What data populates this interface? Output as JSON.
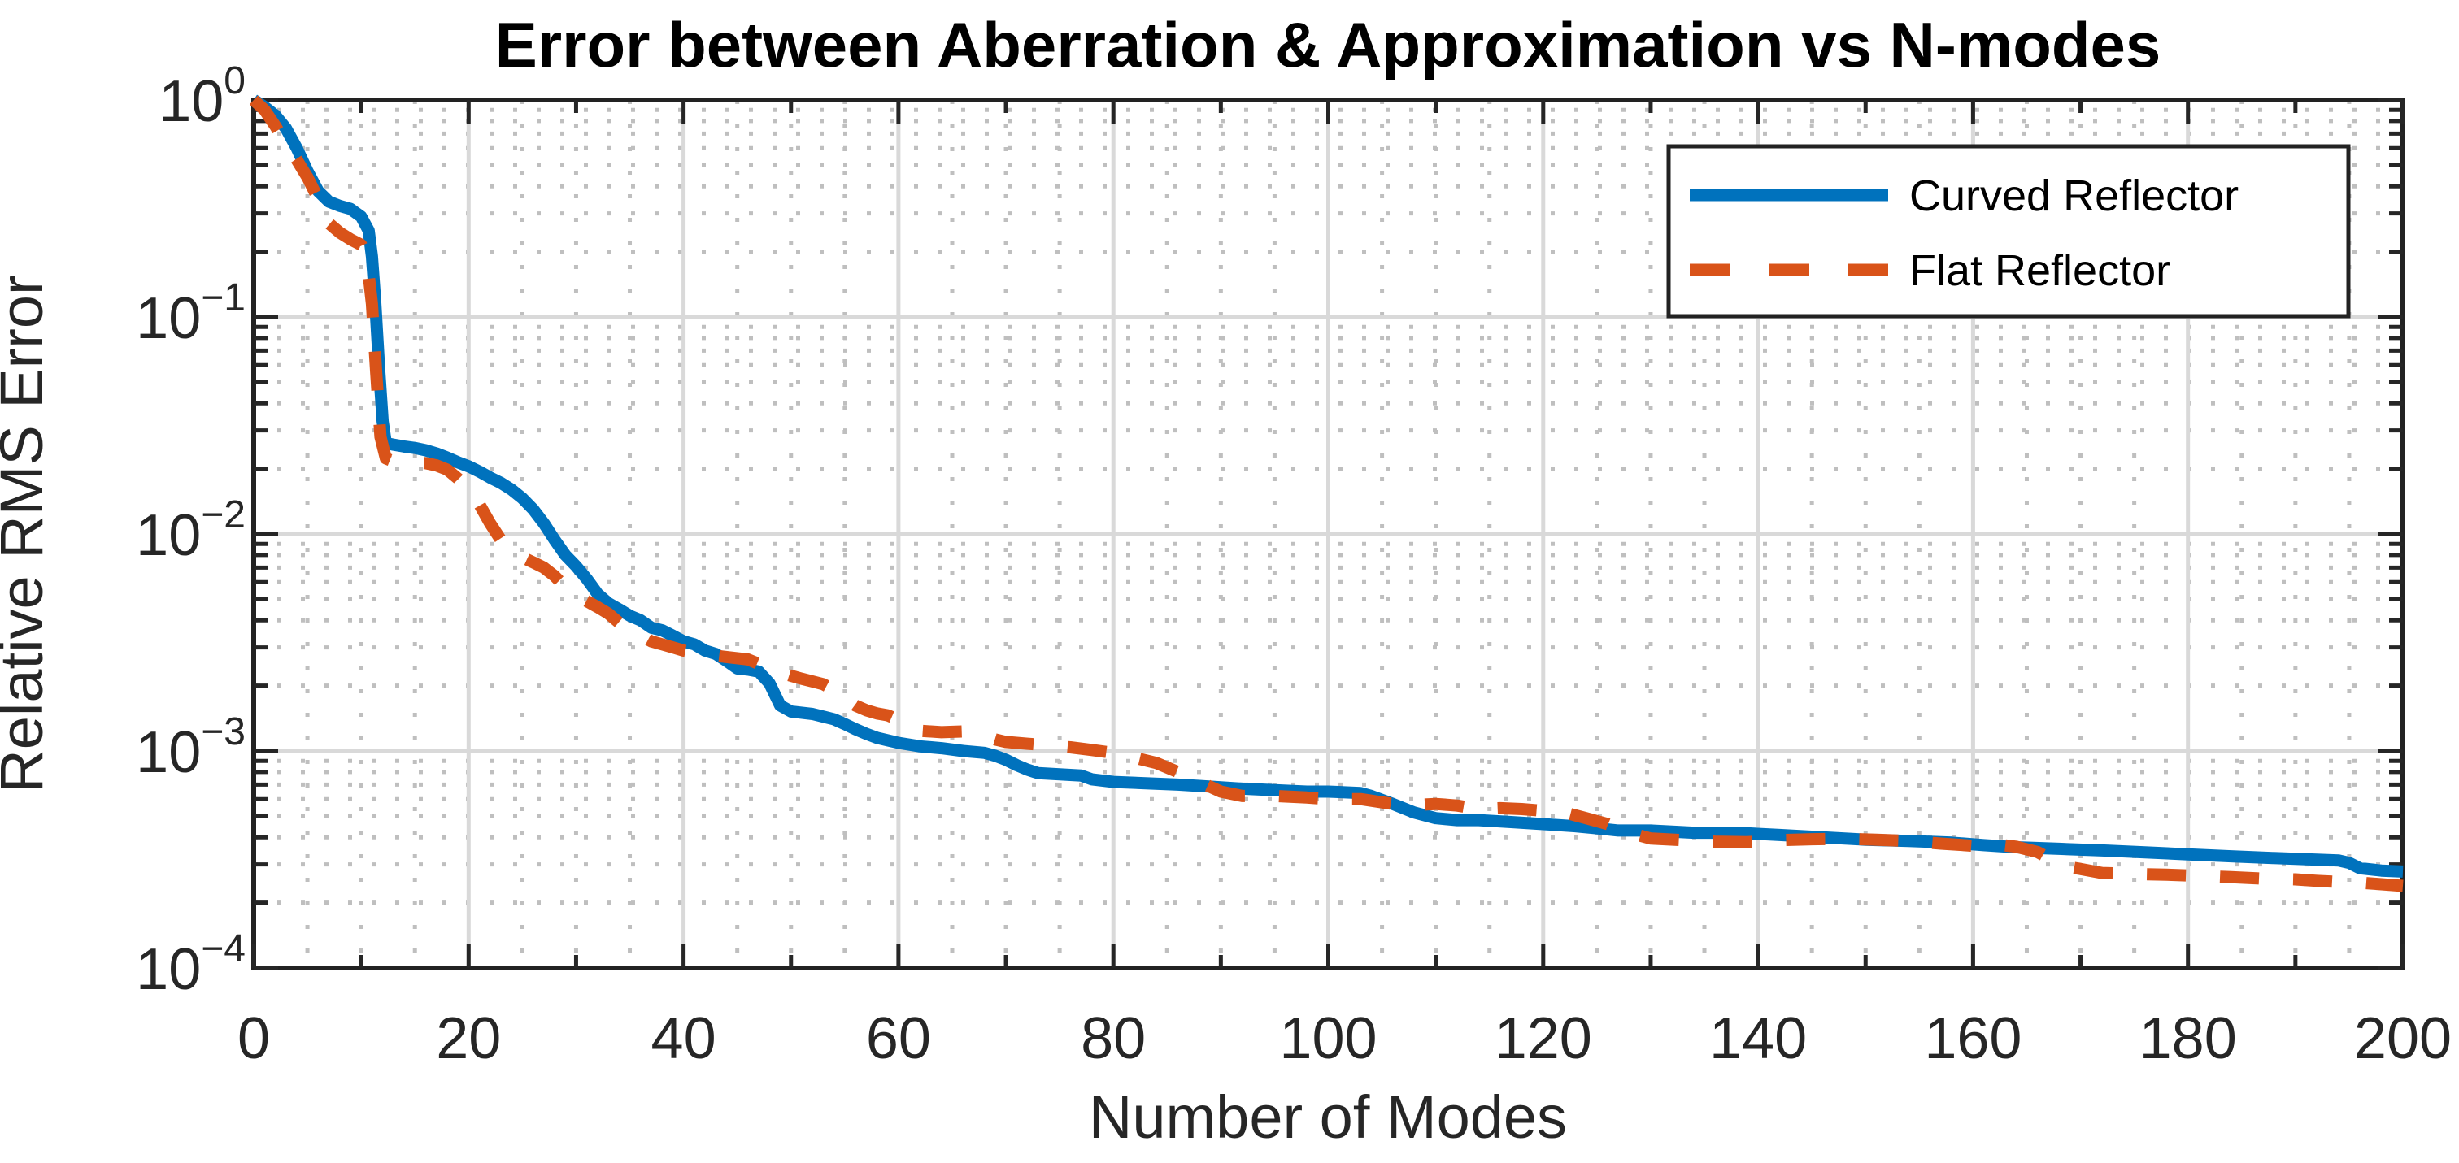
{
  "chart_data": {
    "type": "line",
    "title": "Error between Aberration & Approximation vs N-modes",
    "xlabel": "Number of Modes",
    "ylabel": "Relative RMS Error",
    "xlim": [
      0,
      200
    ],
    "ylim": [
      0.0001,
      1
    ],
    "y_scale": "log10",
    "x_ticks": [
      0,
      20,
      40,
      60,
      80,
      100,
      120,
      140,
      160,
      180,
      200
    ],
    "y_tick_exponents": [
      0,
      -1,
      -2,
      -3,
      -4
    ],
    "grid": {
      "major": "solid",
      "minor": "dotted",
      "x_minor_step": 5,
      "y_minor": "log decades 2-9"
    },
    "legend_position": "northeast",
    "axis_color": "#262626",
    "background": "#ffffff",
    "series": [
      {
        "name": "Curved Reflector",
        "color": "#0072BD",
        "style": "solid",
        "points": [
          [
            0,
            1.0
          ],
          [
            1,
            0.93
          ],
          [
            2,
            0.85
          ],
          [
            3,
            0.74
          ],
          [
            4,
            0.6
          ],
          [
            5,
            0.47
          ],
          [
            6,
            0.38
          ],
          [
            7,
            0.34
          ],
          [
            8,
            0.325
          ],
          [
            9,
            0.315
          ],
          [
            10,
            0.29
          ],
          [
            10.7,
            0.25
          ],
          [
            11,
            0.19
          ],
          [
            11.3,
            0.12
          ],
          [
            11.7,
            0.055
          ],
          [
            12,
            0.033
          ],
          [
            12.3,
            0.0262
          ],
          [
            13,
            0.0258
          ],
          [
            14,
            0.0253
          ],
          [
            15,
            0.0249
          ],
          [
            16,
            0.0243
          ],
          [
            17,
            0.0235
          ],
          [
            18,
            0.0225
          ],
          [
            19,
            0.0214
          ],
          [
            20,
            0.0205
          ],
          [
            21,
            0.0194
          ],
          [
            22,
            0.0182
          ],
          [
            23,
            0.0172
          ],
          [
            24,
            0.016
          ],
          [
            25,
            0.0146
          ],
          [
            26,
            0.013
          ],
          [
            27,
            0.0112
          ],
          [
            28,
            0.0094
          ],
          [
            29,
            0.008
          ],
          [
            30,
            0.0071
          ],
          [
            31,
            0.0062
          ],
          [
            32,
            0.0053
          ],
          [
            33,
            0.0048
          ],
          [
            34,
            0.0045
          ],
          [
            35,
            0.0042
          ],
          [
            36,
            0.004
          ],
          [
            37,
            0.0037
          ],
          [
            38,
            0.0036
          ],
          [
            39,
            0.0034
          ],
          [
            40,
            0.0032
          ],
          [
            41,
            0.0031
          ],
          [
            42,
            0.0029
          ],
          [
            43,
            0.0028
          ],
          [
            44,
            0.0026
          ],
          [
            45,
            0.0024
          ],
          [
            46,
            0.00237
          ],
          [
            47,
            0.00232
          ],
          [
            48,
            0.00205
          ],
          [
            49,
            0.00162
          ],
          [
            50,
            0.00152
          ],
          [
            52,
            0.00148
          ],
          [
            54,
            0.0014
          ],
          [
            55,
            0.00133
          ],
          [
            56,
            0.00126
          ],
          [
            57,
            0.0012
          ],
          [
            58,
            0.00115
          ],
          [
            59,
            0.00112
          ],
          [
            60,
            0.00109
          ],
          [
            62,
            0.00105
          ],
          [
            64,
            0.00103
          ],
          [
            66,
            0.001
          ],
          [
            68,
            0.00098
          ],
          [
            69,
            0.00095
          ],
          [
            70,
            0.00091
          ],
          [
            71,
            0.00086
          ],
          [
            72,
            0.00082
          ],
          [
            73,
            0.00079
          ],
          [
            75,
            0.00078
          ],
          [
            77,
            0.00077
          ],
          [
            78,
            0.00074
          ],
          [
            80,
            0.00072
          ],
          [
            83,
            0.00071
          ],
          [
            86,
            0.0007
          ],
          [
            88,
            0.00069
          ],
          [
            90,
            0.00068
          ],
          [
            92,
            0.00067
          ],
          [
            95,
            0.00066
          ],
          [
            98,
            0.00065
          ],
          [
            100,
            0.00065
          ],
          [
            103,
            0.00064
          ],
          [
            104,
            0.00062
          ],
          [
            106,
            0.00057
          ],
          [
            108,
            0.00052
          ],
          [
            110,
            0.00049
          ],
          [
            112,
            0.00048
          ],
          [
            114,
            0.00048
          ],
          [
            117,
            0.00047
          ],
          [
            120,
            0.00046
          ],
          [
            123,
            0.00045
          ],
          [
            125,
            0.00044
          ],
          [
            127,
            0.00043
          ],
          [
            130,
            0.00043
          ],
          [
            134,
            0.00042
          ],
          [
            138,
            0.00042
          ],
          [
            142,
            0.00041
          ],
          [
            146,
            0.0004
          ],
          [
            150,
            0.00039
          ],
          [
            154,
            0.000385
          ],
          [
            158,
            0.000378
          ],
          [
            161,
            0.000368
          ],
          [
            164,
            0.00036
          ],
          [
            168,
            0.000354
          ],
          [
            172,
            0.000348
          ],
          [
            176,
            0.000341
          ],
          [
            180,
            0.000334
          ],
          [
            184,
            0.000327
          ],
          [
            188,
            0.000321
          ],
          [
            191,
            0.000317
          ],
          [
            194,
            0.000313
          ],
          [
            195,
            0.000305
          ],
          [
            196,
            0.000288
          ],
          [
            198,
            0.000281
          ],
          [
            200,
            0.000278
          ]
        ]
      },
      {
        "name": "Flat Reflector",
        "color": "#D95319",
        "style": "dashed",
        "points": [
          [
            0,
            1.0
          ],
          [
            1,
            0.9
          ],
          [
            2,
            0.76
          ],
          [
            3,
            0.63
          ],
          [
            4,
            0.53
          ],
          [
            5,
            0.44
          ],
          [
            6,
            0.35
          ],
          [
            7,
            0.27
          ],
          [
            8,
            0.245
          ],
          [
            9,
            0.228
          ],
          [
            10,
            0.215
          ],
          [
            10.5,
            0.19
          ],
          [
            11,
            0.115
          ],
          [
            11.4,
            0.055
          ],
          [
            11.8,
            0.028
          ],
          [
            12.3,
            0.0223
          ],
          [
            13,
            0.0216
          ],
          [
            14,
            0.0214
          ],
          [
            15,
            0.0213
          ],
          [
            16,
            0.0212
          ],
          [
            17,
            0.0207
          ],
          [
            18,
            0.0198
          ],
          [
            19,
            0.018
          ],
          [
            20,
            0.016
          ],
          [
            21,
            0.0137
          ],
          [
            22,
            0.0112
          ],
          [
            23,
            0.0094
          ],
          [
            24,
            0.0084
          ],
          [
            25,
            0.0078
          ],
          [
            26,
            0.0074
          ],
          [
            27,
            0.007
          ],
          [
            28,
            0.0064
          ],
          [
            29,
            0.0057
          ],
          [
            30,
            0.0052
          ],
          [
            31,
            0.0049
          ],
          [
            32,
            0.0046
          ],
          [
            33,
            0.0043
          ],
          [
            34,
            0.0039
          ],
          [
            35,
            0.0036
          ],
          [
            36,
            0.0034
          ],
          [
            37,
            0.0032
          ],
          [
            38,
            0.0031
          ],
          [
            39,
            0.003
          ],
          [
            40,
            0.0029
          ],
          [
            42,
            0.00278
          ],
          [
            44,
            0.00271
          ],
          [
            46,
            0.00264
          ],
          [
            47,
            0.00252
          ],
          [
            48,
            0.00241
          ],
          [
            49,
            0.0023
          ],
          [
            50,
            0.00222
          ],
          [
            51,
            0.00215
          ],
          [
            52,
            0.00209
          ],
          [
            53,
            0.00203
          ],
          [
            54,
            0.00191
          ],
          [
            55,
            0.00176
          ],
          [
            56,
            0.00162
          ],
          [
            57,
            0.00154
          ],
          [
            58,
            0.00149
          ],
          [
            59,
            0.00146
          ],
          [
            60,
            0.00139
          ],
          [
            61,
            0.00131
          ],
          [
            62,
            0.00124
          ],
          [
            64,
            0.00122
          ],
          [
            66,
            0.00123
          ],
          [
            67,
            0.0012
          ],
          [
            68,
            0.00117
          ],
          [
            69,
            0.00113
          ],
          [
            70,
            0.0011
          ],
          [
            72,
            0.00108
          ],
          [
            74,
            0.00106
          ],
          [
            76,
            0.00104
          ],
          [
            78,
            0.00101
          ],
          [
            80,
            0.00098
          ],
          [
            82,
            0.00093
          ],
          [
            84,
            0.00088
          ],
          [
            86,
            0.0008
          ],
          [
            88,
            0.00072
          ],
          [
            90,
            0.00065
          ],
          [
            92,
            0.00062
          ],
          [
            95,
            0.00062
          ],
          [
            98,
            0.00061
          ],
          [
            100,
            0.0006
          ],
          [
            103,
            0.0006
          ],
          [
            105,
            0.00058
          ],
          [
            107,
            0.00056
          ],
          [
            110,
            0.00057
          ],
          [
            112,
            0.00056
          ],
          [
            114,
            0.00054
          ],
          [
            116,
            0.000545
          ],
          [
            118,
            0.00054
          ],
          [
            120,
            0.00053
          ],
          [
            122,
            0.00052
          ],
          [
            124,
            0.00049
          ],
          [
            126,
            0.00046
          ],
          [
            128,
            0.00042
          ],
          [
            130,
            0.000395
          ],
          [
            133,
            0.000388
          ],
          [
            136,
            0.000382
          ],
          [
            139,
            0.00038
          ],
          [
            142,
            0.000388
          ],
          [
            145,
            0.000392
          ],
          [
            148,
            0.000394
          ],
          [
            151,
            0.00039
          ],
          [
            154,
            0.000385
          ],
          [
            157,
            0.000374
          ],
          [
            160,
            0.000366
          ],
          [
            162,
            0.000372
          ],
          [
            164,
            0.000362
          ],
          [
            166,
            0.000342
          ],
          [
            167,
            0.000322
          ],
          [
            168,
            0.000302
          ],
          [
            169,
            0.000291
          ],
          [
            170,
            0.000286
          ],
          [
            172,
            0.000274
          ],
          [
            175,
            0.000271
          ],
          [
            178,
            0.000269
          ],
          [
            181,
            0.000266
          ],
          [
            184,
            0.000262
          ],
          [
            187,
            0.000258
          ],
          [
            190,
            0.000256
          ],
          [
            192,
            0.000252
          ],
          [
            194,
            0.000249
          ],
          [
            196,
            0.000247
          ],
          [
            198,
            0.000243
          ],
          [
            200,
            0.000239
          ]
        ]
      }
    ]
  }
}
